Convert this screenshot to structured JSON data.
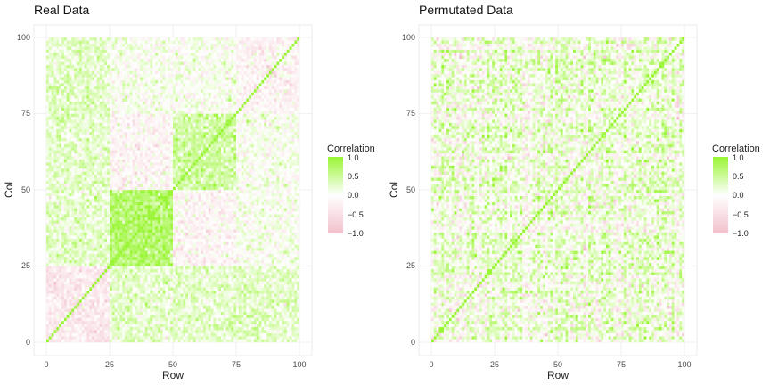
{
  "chart_data": [
    {
      "type": "heatmap",
      "title": "Real Data",
      "xlabel": "Row",
      "ylabel": "Col",
      "xlim": [
        0,
        100
      ],
      "ylim": [
        0,
        100
      ],
      "xticks": [
        "0",
        "25",
        "50",
        "75",
        "100"
      ],
      "yticks": [
        "0",
        "25",
        "50",
        "75",
        "100"
      ],
      "grid": true,
      "grid_size": 100,
      "diagonal_value": 1.0,
      "blocks": [
        {
          "range": [
            1,
            25
          ],
          "mean": -0.35
        },
        {
          "range": [
            26,
            50
          ],
          "mean": 0.75
        },
        {
          "range": [
            51,
            75
          ],
          "mean": 0.45
        },
        {
          "range": [
            76,
            100
          ],
          "mean": -0.2
        }
      ],
      "block_pairs": [
        {
          "a": [
            26,
            50
          ],
          "b": [
            51,
            75
          ],
          "mean": -0.15
        },
        {
          "a": [
            1,
            25
          ],
          "b": [
            26,
            100
          ],
          "mean": 0.25
        }
      ],
      "off_block_mean": 0.05,
      "noise_sd": 0.2,
      "legend": {
        "title": "Correlation",
        "ticks": [
          "1.0",
          "0.5",
          "0.0",
          "−0.5",
          "−1.0"
        ],
        "position": "right"
      }
    },
    {
      "type": "heatmap",
      "title": "Permutated Data",
      "xlabel": "Row",
      "ylabel": "Col",
      "xlim": [
        0,
        100
      ],
      "ylim": [
        0,
        100
      ],
      "xticks": [
        "0",
        "25",
        "50",
        "75",
        "100"
      ],
      "yticks": [
        "0",
        "25",
        "50",
        "75",
        "100"
      ],
      "grid": true,
      "grid_size": 100,
      "diagonal_value": 1.0,
      "off_block_mean": 0.1,
      "noise_sd": 0.3,
      "legend": {
        "title": "Correlation",
        "ticks": [
          "1.0",
          "0.5",
          "0.0",
          "−0.5",
          "−1.0"
        ],
        "position": "right"
      }
    }
  ],
  "colors": {
    "high": "#99f533",
    "mid": "#ffffff",
    "low": "#f2c0cc",
    "grid": "#e5e5e5",
    "tick": "#4d4d4d"
  }
}
